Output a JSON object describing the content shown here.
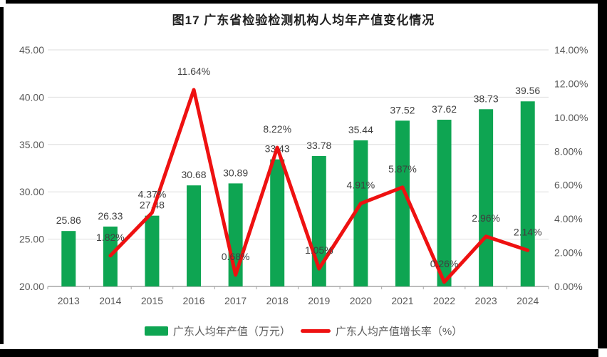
{
  "page": {
    "title": "图17  广东省检验检测机构人均年产值变化情况"
  },
  "colors": {
    "bar": "#0ea552",
    "line": "#ee1111",
    "grid": "#dedede",
    "axis_line": "#a6a6a6",
    "axis_text": "#595959",
    "data_label": "#3f3f3f"
  },
  "chart_data": {
    "type": "bar",
    "subtype": "combo-bar-line",
    "title": "图17  广东省检验检测机构人均年产值变化情况",
    "categories": [
      "2013",
      "2014",
      "2015",
      "2016",
      "2017",
      "2018",
      "2019",
      "2020",
      "2021",
      "2022",
      "2023",
      "2024"
    ],
    "series": [
      {
        "name": "广东人均年产值（万元）",
        "type": "bar",
        "axis": "left",
        "values": [
          25.86,
          26.33,
          27.48,
          30.68,
          30.89,
          33.43,
          33.78,
          35.44,
          37.52,
          37.62,
          38.73,
          39.56
        ],
        "labels": [
          "25.86",
          "26.33",
          "27.48",
          "30.68",
          "30.89",
          "33.43",
          "33.78",
          "35.44",
          "37.52",
          "37.62",
          "38.73",
          "39.56"
        ]
      },
      {
        "name": "广东人均产值增长率（%）",
        "type": "line",
        "axis": "right",
        "values": [
          null,
          1.82,
          4.37,
          11.64,
          0.68,
          8.22,
          1.05,
          4.91,
          5.87,
          0.26,
          2.96,
          2.14
        ],
        "labels": [
          null,
          "1.82%",
          "4.37%",
          "11.64%",
          "0.68%",
          "8.22%",
          "1.05%",
          "4.91%",
          "5.87%",
          "0.26%",
          "2.96%",
          "2.14%"
        ]
      }
    ],
    "left_axis": {
      "min": 20,
      "max": 45,
      "step": 5,
      "tick_labels": [
        "45.00",
        "40.00",
        "35.00",
        "30.00",
        "25.00",
        "20.00"
      ]
    },
    "right_axis": {
      "min": 0,
      "max": 14,
      "step": 2,
      "tick_labels": [
        "14.00%",
        "12.00%",
        "10.00%",
        "8.00%",
        "6.00%",
        "4.00%",
        "2.00%",
        "0.00%"
      ]
    },
    "grid": true,
    "legend_position": "bottom"
  },
  "legend": {
    "items": [
      {
        "label": "广东人均年产值（万元）",
        "swatch": "bar"
      },
      {
        "label": "广东人均产值增长率（%）",
        "swatch": "line"
      }
    ]
  }
}
